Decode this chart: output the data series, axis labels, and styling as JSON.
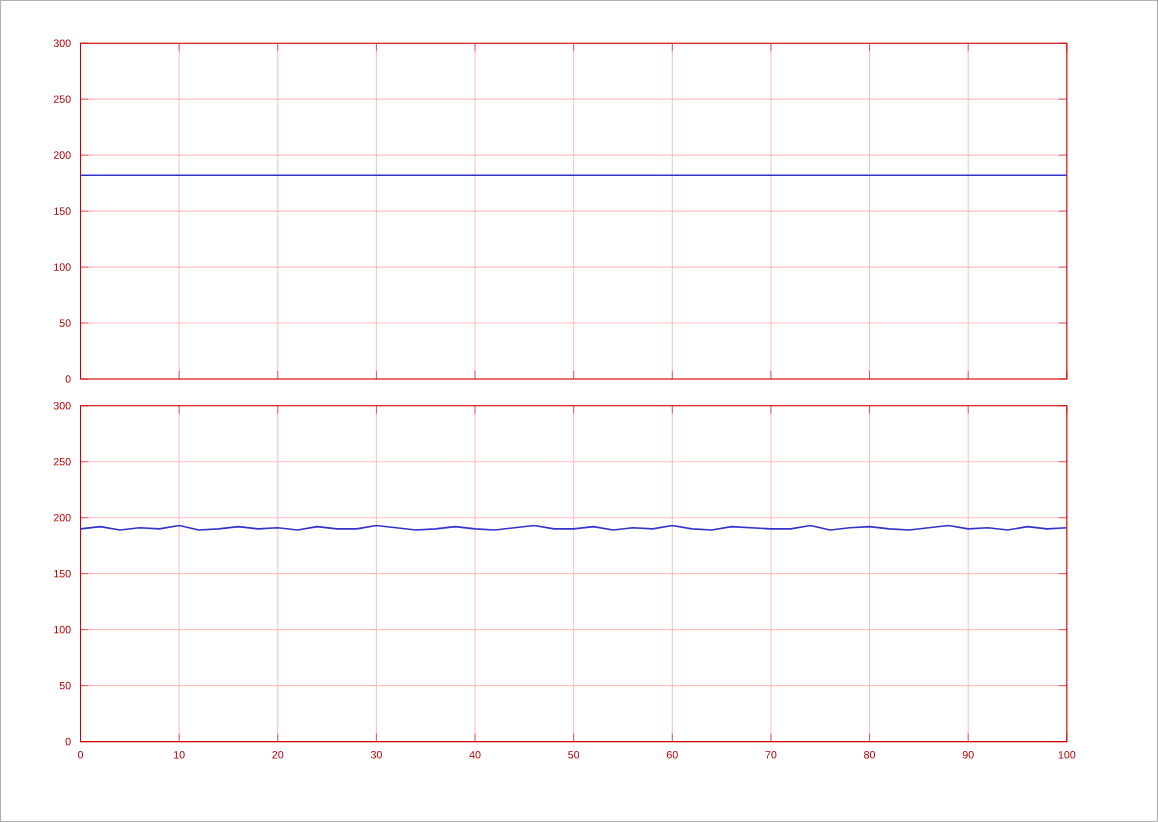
{
  "chart_data": [
    {
      "type": "line",
      "xlim": [
        0,
        100
      ],
      "ylim": [
        0,
        300
      ],
      "xticks": [
        0,
        10,
        20,
        30,
        40,
        50,
        60,
        70,
        80,
        90,
        100
      ],
      "yticks": [
        0,
        50,
        100,
        150,
        200,
        250,
        300
      ],
      "grid": true,
      "tick_labels": "y",
      "x": [
        0,
        100
      ],
      "series": [
        {
          "color": "#3333cc",
          "values": [
            182,
            182
          ]
        }
      ]
    },
    {
      "type": "line",
      "xlim": [
        0,
        100
      ],
      "ylim": [
        0,
        300
      ],
      "xticks": [
        0,
        10,
        20,
        30,
        40,
        50,
        60,
        70,
        80,
        90,
        100
      ],
      "yticks": [
        0,
        50,
        100,
        150,
        200,
        250,
        300
      ],
      "grid": true,
      "x": [
        0,
        2,
        4,
        6,
        8,
        10,
        12,
        14,
        16,
        18,
        20,
        22,
        24,
        26,
        28,
        30,
        32,
        34,
        36,
        38,
        40,
        42,
        44,
        46,
        48,
        50,
        52,
        54,
        56,
        58,
        60,
        62,
        64,
        66,
        68,
        70,
        72,
        74,
        76,
        78,
        80,
        82,
        84,
        86,
        88,
        90,
        92,
        94,
        96,
        98,
        100
      ],
      "series": [
        {
          "color": "#3333cc",
          "values": [
            190,
            192,
            189,
            191,
            190,
            193,
            189,
            190,
            192,
            190,
            191,
            189,
            192,
            190,
            190,
            193,
            191,
            189,
            190,
            192,
            190,
            189,
            191,
            193,
            190,
            190,
            192,
            189,
            191,
            190,
            193,
            190,
            189,
            192,
            191,
            190,
            190,
            193,
            189,
            191,
            192,
            190,
            189,
            191,
            193,
            190,
            191,
            189,
            192,
            190,
            191
          ]
        }
      ]
    }
  ]
}
